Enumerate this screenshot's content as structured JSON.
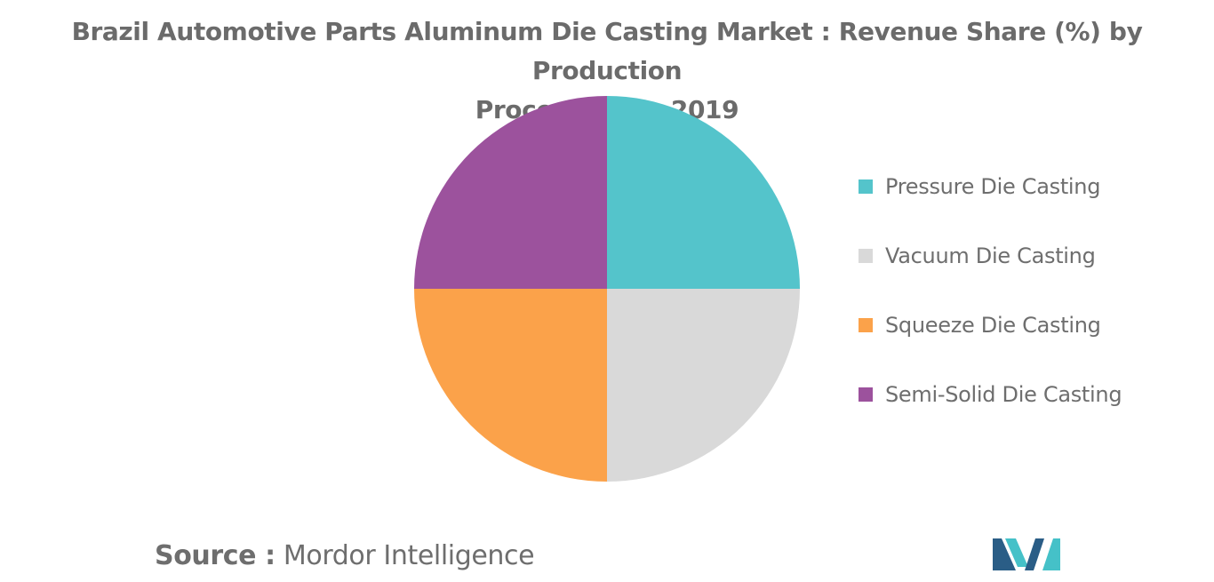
{
  "chart_data": {
    "type": "pie",
    "title_lines": [
      "Brazil Automotive Parts Aluminum Die Casting Market : Revenue Share (%) by Production",
      "Process Type, 2019"
    ],
    "slices": [
      {
        "label": "Pressure Die Casting",
        "value": 25,
        "color": "#54c4cb"
      },
      {
        "label": "Vacuum Die Casting",
        "value": 25,
        "color": "#d9d9d9"
      },
      {
        "label": "Squeeze Die Casting",
        "value": 25,
        "color": "#fba24a"
      },
      {
        "label": "Semi-Solid Die Casting",
        "value": 25,
        "color": "#9c529d"
      }
    ],
    "start_angle": "12 o'clock",
    "direction": "clockwise",
    "legend_position": "right"
  },
  "source": {
    "label": "Source :",
    "text": "Mordor Intelligence"
  },
  "logo": {
    "name": "mordor-intelligence-logo",
    "colors": [
      "#2a5d86",
      "#45c1c8"
    ]
  }
}
